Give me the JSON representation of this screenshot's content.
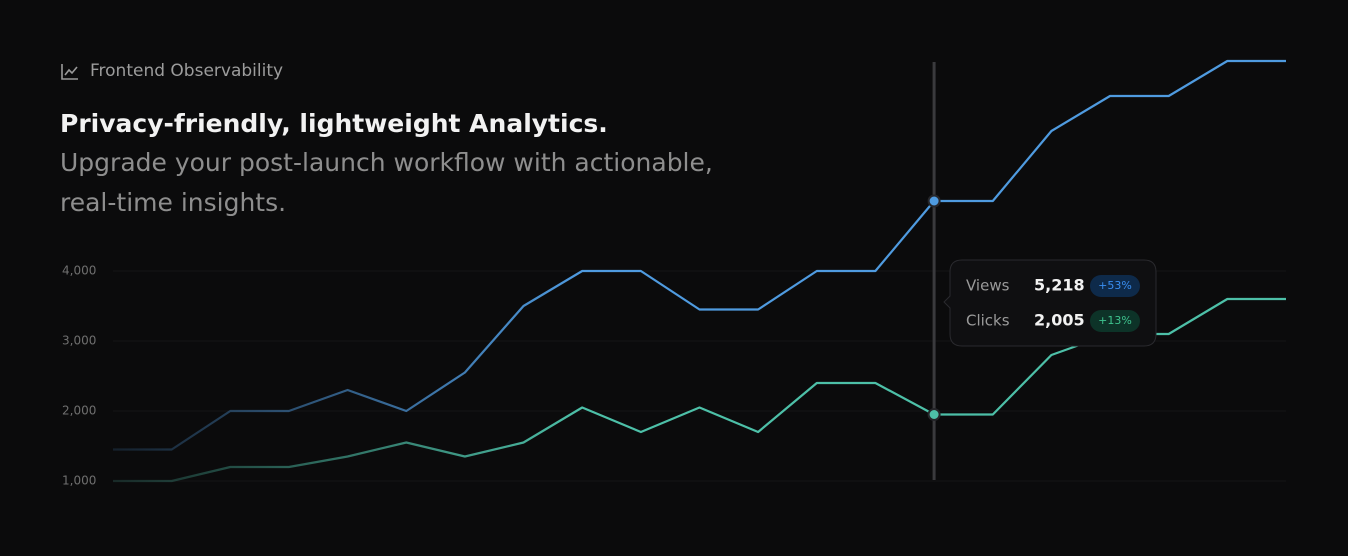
{
  "header": {
    "eyebrow": "Frontend Observability",
    "title": "Privacy-friendly, lightweight Analytics.",
    "subtitle_lines": [
      "Upgrade your post-launch workflow with actionable,",
      "real-time insights."
    ]
  },
  "chart_data": {
    "type": "line",
    "categories": [
      null,
      null,
      null,
      null,
      null,
      null,
      null,
      null,
      null,
      null,
      null,
      null,
      null,
      null,
      null,
      null,
      null,
      null,
      null,
      null,
      null
    ],
    "series": [
      {
        "name": "Views",
        "color": "#4f9be0",
        "values": [
          1450,
          1450,
          2000,
          2000,
          2300,
          2000,
          2550,
          3500,
          4000,
          4000,
          3450,
          3450,
          4000,
          4000,
          5000,
          5000,
          6000,
          6500,
          6500,
          7000,
          7000
        ]
      },
      {
        "name": "Clicks",
        "color": "#4dc0a8",
        "values": [
          1000,
          1000,
          1200,
          1200,
          1350,
          1550,
          1350,
          1550,
          2050,
          1700,
          2050,
          1700,
          2400,
          2400,
          1950,
          1950,
          2800,
          3100,
          3100,
          3600,
          3600
        ]
      }
    ],
    "ylim": [
      1000,
      7000
    ],
    "yticks": [
      {
        "value": 1000,
        "label": "1,000"
      },
      {
        "value": 2000,
        "label": "2,000"
      },
      {
        "value": 3000,
        "label": "3,000"
      },
      {
        "value": 4000,
        "label": "4,000"
      }
    ],
    "grid": true,
    "tooltip": [
      {
        "label": "Views",
        "value": "5,218",
        "change": "+53%"
      },
      {
        "label": "Clicks",
        "value": "2,005",
        "change": "+13%"
      }
    ]
  }
}
